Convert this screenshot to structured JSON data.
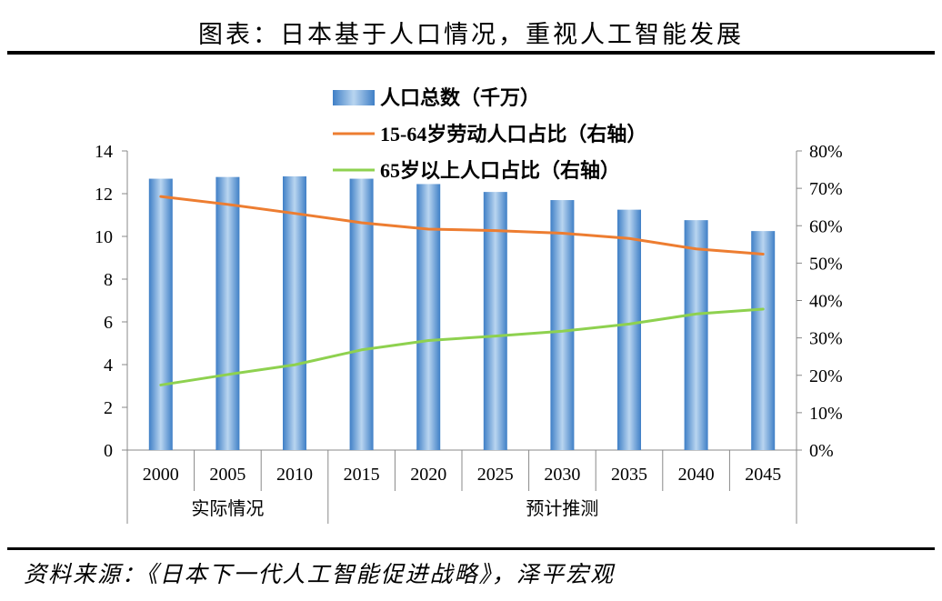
{
  "header": {
    "title": "图表：日本基于人口情况，重视人工智能发展"
  },
  "footer": {
    "source": "资料来源：《日本下一代人工智能促进战略》，泽平宏观"
  },
  "colors": {
    "bar": "#3f7fc6",
    "bar_light": "#b9d5f0",
    "labor_line": "#ed7d31",
    "elderly_line": "#8ed14f"
  },
  "chart_data": {
    "type": "bar",
    "title": "",
    "categories": [
      "2000",
      "2005",
      "2010",
      "2015",
      "2020",
      "2025",
      "2030",
      "2035",
      "2040",
      "2045"
    ],
    "groups": [
      {
        "label": "实际情况",
        "from": 0,
        "to": 2
      },
      {
        "label": "预计推测",
        "from": 3,
        "to": 9
      }
    ],
    "series": [
      {
        "name": "人口总数（千万）",
        "type": "bar",
        "axis": "left",
        "values": [
          12.7,
          12.78,
          12.81,
          12.7,
          12.45,
          12.08,
          11.7,
          11.25,
          10.76,
          10.25
        ]
      },
      {
        "name": "15-64岁劳动人口占比（右轴）",
        "type": "line",
        "axis": "right",
        "values": [
          67.8,
          65.7,
          63.3,
          60.8,
          59.1,
          58.7,
          58.0,
          56.6,
          53.8,
          52.4
        ]
      },
      {
        "name": "65岁以上人口占比（右轴）",
        "type": "line",
        "axis": "right",
        "values": [
          17.4,
          20.2,
          22.8,
          26.8,
          29.3,
          30.5,
          31.8,
          33.7,
          36.4,
          37.7
        ]
      }
    ],
    "y_left": {
      "min": 0,
      "max": 14,
      "step": 2,
      "ticks": [
        "0",
        "2",
        "4",
        "6",
        "8",
        "10",
        "12",
        "14"
      ]
    },
    "y_right": {
      "min": 0,
      "max": 80,
      "step": 10,
      "ticks": [
        "0%",
        "10%",
        "20%",
        "30%",
        "40%",
        "50%",
        "60%",
        "70%",
        "80%"
      ]
    },
    "legend_position": "top-center",
    "grid": false
  }
}
